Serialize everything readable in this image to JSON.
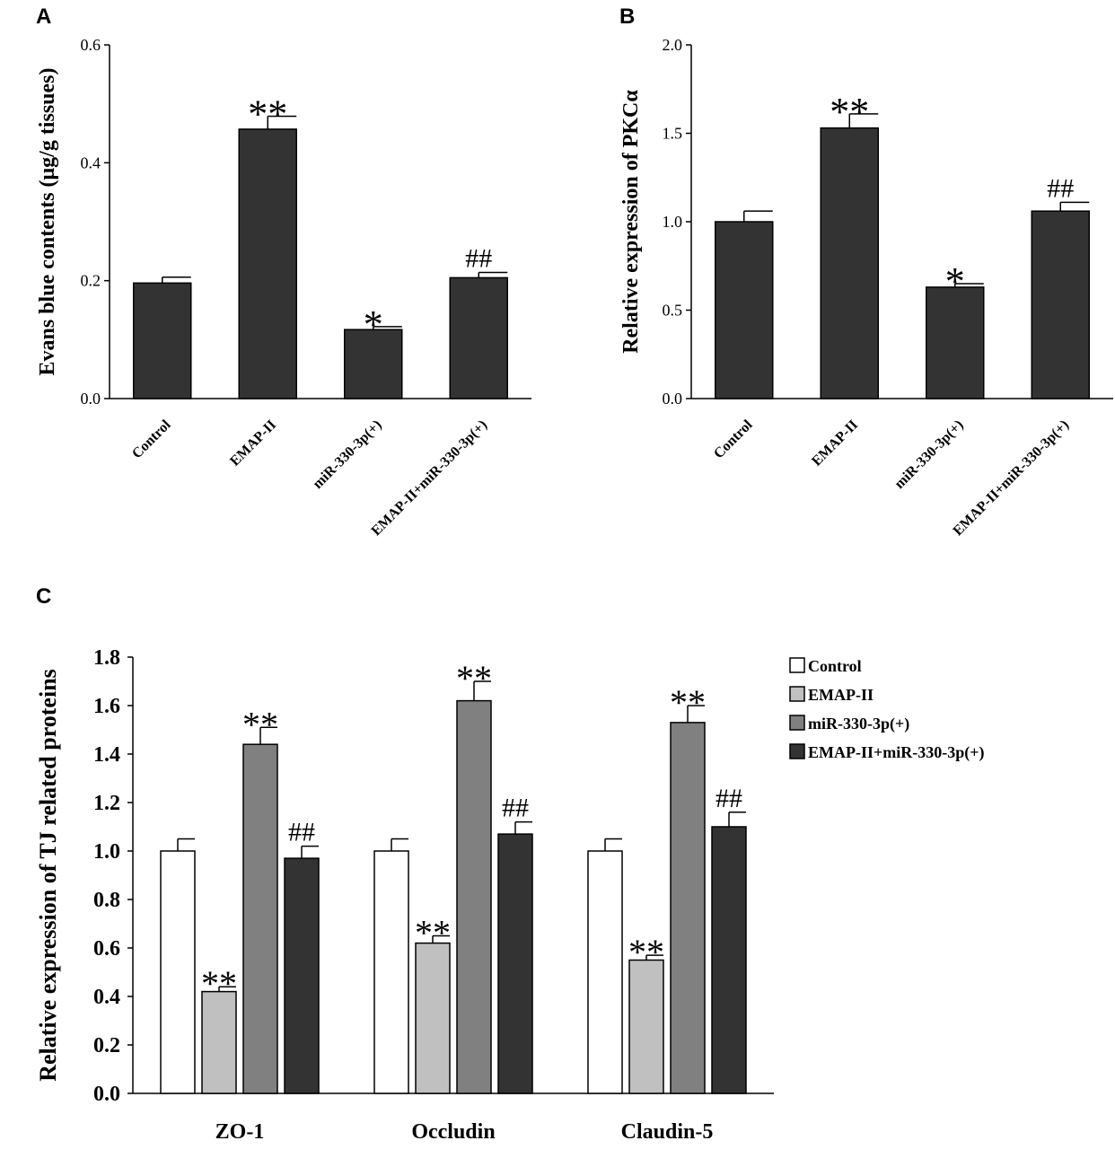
{
  "chart_data": [
    {
      "panel": "A",
      "type": "bar",
      "ylabel": "Evans blue contents (μg/g tissues)",
      "ylim": [
        0,
        0.6
      ],
      "yticks": [
        "0.0",
        "0.2",
        "0.4",
        "0.6"
      ],
      "categories": [
        "Control",
        "EMAP-II",
        "miR-330-3p(+)",
        "EMAP-II+miR-330-3p(+)"
      ],
      "values": [
        0.196,
        0.457,
        0.117,
        0.205
      ],
      "errors": [
        0.01,
        0.022,
        0.005,
        0.009
      ],
      "annotations": [
        "",
        "**",
        "*",
        "##"
      ],
      "color": "#333333"
    },
    {
      "panel": "B",
      "type": "bar",
      "ylabel": "Relative expression of PKCα",
      "ylim": [
        0,
        2.0
      ],
      "yticks": [
        "0.0",
        "0.5",
        "1.0",
        "1.5",
        "2.0"
      ],
      "categories": [
        "Control",
        "EMAP-II",
        "miR-330-3p(+)",
        "EMAP-II+miR-330-3p(+)"
      ],
      "values": [
        1.0,
        1.53,
        0.63,
        1.06
      ],
      "errors": [
        0.06,
        0.08,
        0.02,
        0.05
      ],
      "annotations": [
        "",
        "**",
        "*",
        "##"
      ],
      "color": "#333333"
    },
    {
      "panel": "C",
      "type": "bar",
      "ylabel": "Relative expression of TJ related proteins",
      "ylim": [
        0,
        1.8
      ],
      "yticks": [
        "0.0",
        "0.2",
        "0.4",
        "0.6",
        "0.8",
        "1.0",
        "1.2",
        "1.4",
        "1.6",
        "1.8"
      ],
      "categories": [
        "ZO-1",
        "Occludin",
        "Claudin-5"
      ],
      "series": [
        {
          "name": "Control",
          "color": "#ffffff",
          "values": [
            1.0,
            1.0,
            1.0
          ],
          "errors": [
            0.05,
            0.05,
            0.05
          ],
          "annotations": [
            "",
            "",
            ""
          ]
        },
        {
          "name": "EMAP-II",
          "color": "#c0c0c0",
          "values": [
            0.42,
            0.62,
            0.55
          ],
          "errors": [
            0.02,
            0.03,
            0.02
          ],
          "annotations": [
            "**",
            "**",
            "**"
          ]
        },
        {
          "name": "miR-330-3p(+)",
          "color": "#808080",
          "values": [
            1.44,
            1.62,
            1.53
          ],
          "errors": [
            0.07,
            0.08,
            0.07
          ],
          "annotations": [
            "**",
            "**",
            "**"
          ]
        },
        {
          "name": "EMAP-II+miR-330-3p(+)",
          "color": "#333333",
          "values": [
            0.97,
            1.07,
            1.1
          ],
          "errors": [
            0.05,
            0.05,
            0.06
          ],
          "annotations": [
            "##",
            "##",
            "##"
          ]
        }
      ],
      "legend": "top-right"
    }
  ]
}
